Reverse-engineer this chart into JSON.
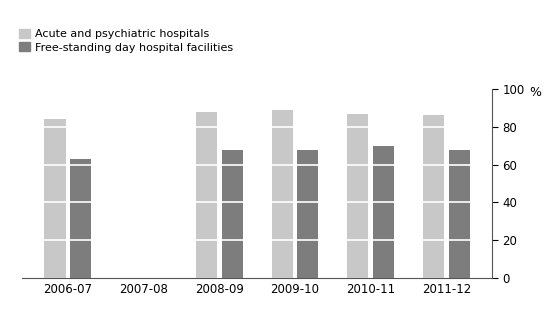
{
  "categories": [
    "2006-07",
    "2007-08",
    "2008-09",
    "2009-10",
    "2010-11",
    "2011-12"
  ],
  "acute_values": [
    84.0,
    null,
    88.0,
    89.0,
    87.0,
    86.5
  ],
  "freestanding_values": [
    63.0,
    null,
    68.0,
    68.0,
    70.0,
    68.0
  ],
  "acute_color": "#c8c8c8",
  "freestanding_color": "#7d7d7d",
  "background_color": "#ffffff",
  "ylabel": "%",
  "ylim": [
    0,
    100
  ],
  "yticks": [
    0,
    20,
    40,
    60,
    80,
    100
  ],
  "legend_labels": [
    "Acute and psychiatric hospitals",
    "Free-standing day hospital facilities"
  ],
  "bar_width": 0.28,
  "bar_gap": 0.06,
  "white_line_lw": 1.2
}
